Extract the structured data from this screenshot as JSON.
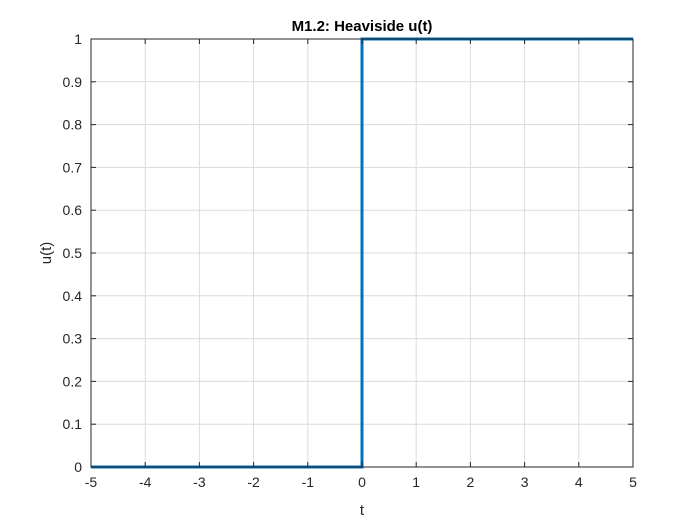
{
  "chart_data": {
    "type": "line",
    "title": "M1.2: Heaviside u(t)",
    "xlabel": "t",
    "ylabel": "u(t)",
    "xlim": [
      -5,
      5
    ],
    "ylim": [
      0,
      1
    ],
    "grid": true,
    "x_ticks": [
      -5,
      -4,
      -3,
      -2,
      -1,
      0,
      1,
      2,
      3,
      4,
      5
    ],
    "y_ticks": [
      0,
      0.1,
      0.2,
      0.3,
      0.4,
      0.5,
      0.6,
      0.7,
      0.8,
      0.9,
      1
    ],
    "x_tick_labels": [
      "-5",
      "-4",
      "-3",
      "-2",
      "-1",
      "0",
      "1",
      "2",
      "3",
      "4",
      "5"
    ],
    "y_tick_labels": [
      "0",
      "0.1",
      "0.2",
      "0.3",
      "0.4",
      "0.5",
      "0.6",
      "0.7",
      "0.8",
      "0.9",
      "1"
    ],
    "series": [
      {
        "color": "#0072bd",
        "x": [
          -5,
          0,
          0,
          5
        ],
        "y": [
          0,
          0,
          1,
          1
        ]
      }
    ]
  }
}
